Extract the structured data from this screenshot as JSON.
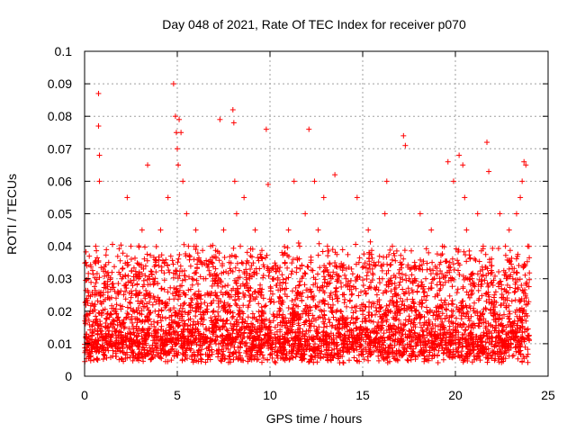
{
  "chart_data": {
    "type": "scatter",
    "title": "Day 048 of 2021, Rate Of TEC Index for receiver p070",
    "xlabel": "GPS time / hours",
    "ylabel": "ROTI / TECUs",
    "xlim": [
      0,
      25
    ],
    "ylim": [
      0,
      0.1
    ],
    "x_ticks": [
      "0",
      "5",
      "10",
      "15",
      "20",
      "25"
    ],
    "y_ticks": [
      "0",
      "0.01",
      "0.02",
      "0.03",
      "0.04",
      "0.05",
      "0.06",
      "0.07",
      "0.08",
      "0.09",
      "0.1"
    ],
    "grid": true,
    "marker": "plus",
    "color": "#ff0000",
    "series": [
      {
        "x": [
          0.2,
          0.4,
          0.6,
          0.75,
          0.75,
          0.8,
          0.8,
          1.0,
          1.3,
          1.6,
          2.0,
          2.3,
          2.5,
          2.8,
          3.1,
          3.4,
          3.5,
          3.8,
          4.1,
          4.3,
          4.5,
          4.8,
          4.9,
          4.95,
          5.0,
          5.05,
          5.1,
          5.2,
          5.3,
          5.5,
          5.6,
          5.8,
          6.0,
          6.3,
          6.5,
          6.8,
          7.0,
          7.3,
          7.5,
          7.8,
          8.0,
          8.05,
          8.1,
          8.2,
          8.4,
          8.6,
          8.9,
          9.2,
          9.5,
          9.8,
          9.9,
          10.2,
          10.5,
          10.8,
          11.0,
          11.3,
          11.6,
          11.9,
          12.1,
          12.2,
          12.4,
          12.6,
          12.9,
          13.1,
          13.3,
          13.5,
          13.8,
          14.1,
          14.4,
          14.7,
          14.8,
          15.0,
          15.3,
          15.6,
          15.9,
          16.2,
          16.3,
          16.6,
          16.9,
          17.2,
          17.3,
          17.5,
          17.8,
          18.1,
          18.4,
          18.7,
          19.0,
          19.3,
          19.6,
          19.7,
          19.9,
          20.2,
          20.4,
          20.5,
          20.6,
          20.9,
          21.2,
          21.5,
          21.7,
          21.8,
          22.1,
          22.4,
          22.7,
          22.9,
          23.1,
          23.3,
          23.5,
          23.6,
          23.7,
          23.8,
          23.9
        ],
        "y": [
          0.03,
          0.02,
          0.04,
          0.087,
          0.077,
          0.068,
          0.06,
          0.025,
          0.035,
          0.02,
          0.03,
          0.055,
          0.04,
          0.025,
          0.045,
          0.065,
          0.03,
          0.02,
          0.045,
          0.035,
          0.055,
          0.09,
          0.08,
          0.075,
          0.07,
          0.065,
          0.079,
          0.075,
          0.06,
          0.05,
          0.04,
          0.03,
          0.045,
          0.035,
          0.025,
          0.04,
          0.03,
          0.079,
          0.045,
          0.035,
          0.082,
          0.078,
          0.06,
          0.05,
          0.04,
          0.055,
          0.03,
          0.045,
          0.025,
          0.076,
          0.059,
          0.03,
          0.02,
          0.035,
          0.045,
          0.06,
          0.04,
          0.05,
          0.076,
          0.035,
          0.06,
          0.045,
          0.055,
          0.04,
          0.03,
          0.062,
          0.02,
          0.03,
          0.025,
          0.055,
          0.035,
          0.02,
          0.045,
          0.035,
          0.03,
          0.05,
          0.06,
          0.04,
          0.025,
          0.074,
          0.071,
          0.03,
          0.035,
          0.05,
          0.03,
          0.045,
          0.02,
          0.04,
          0.066,
          0.035,
          0.06,
          0.068,
          0.065,
          0.055,
          0.045,
          0.03,
          0.05,
          0.04,
          0.072,
          0.063,
          0.025,
          0.05,
          0.04,
          0.045,
          0.03,
          0.05,
          0.055,
          0.06,
          0.066,
          0.065,
          0.04
        ]
      }
    ]
  }
}
